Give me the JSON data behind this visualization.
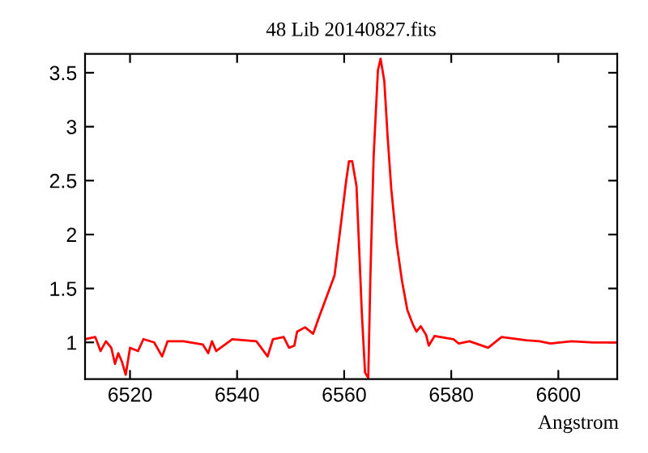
{
  "chart_data": {
    "type": "line",
    "title": "48 Lib 20140827.fits",
    "xlabel": "Angstrom",
    "xlim": [
      6511.6,
      6611
    ],
    "ylim": [
      0.66,
      3.675
    ],
    "xticks": [
      6520,
      6540,
      6560,
      6580,
      6600
    ],
    "yticks": [
      1,
      1.5,
      2,
      2.5,
      3,
      3.5
    ],
    "series": [
      {
        "color": "#ff0000",
        "x": [
          6511.6,
          6513.5,
          6514.5,
          6515.5,
          6516.5,
          6517.2,
          6517.8,
          6518.5,
          6519.2,
          6520,
          6521.5,
          6522.5,
          6524.5,
          6526,
          6527,
          6530,
          6533.6,
          6534.6,
          6535.3,
          6536.1,
          6539.1,
          6543.6,
          6545.7,
          6546.7,
          6548.7,
          6549.7,
          6550.7,
          6551.2,
          6552.7,
          6554.2,
          6555.2,
          6556.7,
          6558.2,
          6559.2,
          6560.3,
          6560.9,
          6561.5,
          6562.3,
          6562.8,
          6563.3,
          6563.9,
          6564.5,
          6564.9,
          6565.5,
          6566.3,
          6566.8,
          6567.5,
          6568.1,
          6568.8,
          6569.8,
          6570.8,
          6571.8,
          6572.8,
          6573.5,
          6574.3,
          6575.3,
          6575.8,
          6576.9,
          6580.4,
          6581.4,
          6583.4,
          6586.9,
          6589.4,
          6594,
          6596.5,
          6598.5,
          6602.5,
          6606.5,
          6610.9
        ],
        "values": [
          1.03,
          1.05,
          0.92,
          1.01,
          0.95,
          0.8,
          0.9,
          0.82,
          0.7,
          0.95,
          0.92,
          1.03,
          1.0,
          0.87,
          1.01,
          1.01,
          0.98,
          0.9,
          1.01,
          0.92,
          1.03,
          1.01,
          0.87,
          1.03,
          1.05,
          0.95,
          0.97,
          1.1,
          1.14,
          1.08,
          1.22,
          1.42,
          1.62,
          2.02,
          2.47,
          2.68,
          2.68,
          2.45,
          1.87,
          1.27,
          0.72,
          0.67,
          1.62,
          2.72,
          3.52,
          3.63,
          3.42,
          2.92,
          2.42,
          1.92,
          1.57,
          1.3,
          1.17,
          1.1,
          1.15,
          1.07,
          0.97,
          1.06,
          1.03,
          0.99,
          1.01,
          0.95,
          1.05,
          1.02,
          1.01,
          0.99,
          1.01,
          1.0,
          1.0
        ]
      }
    ]
  }
}
